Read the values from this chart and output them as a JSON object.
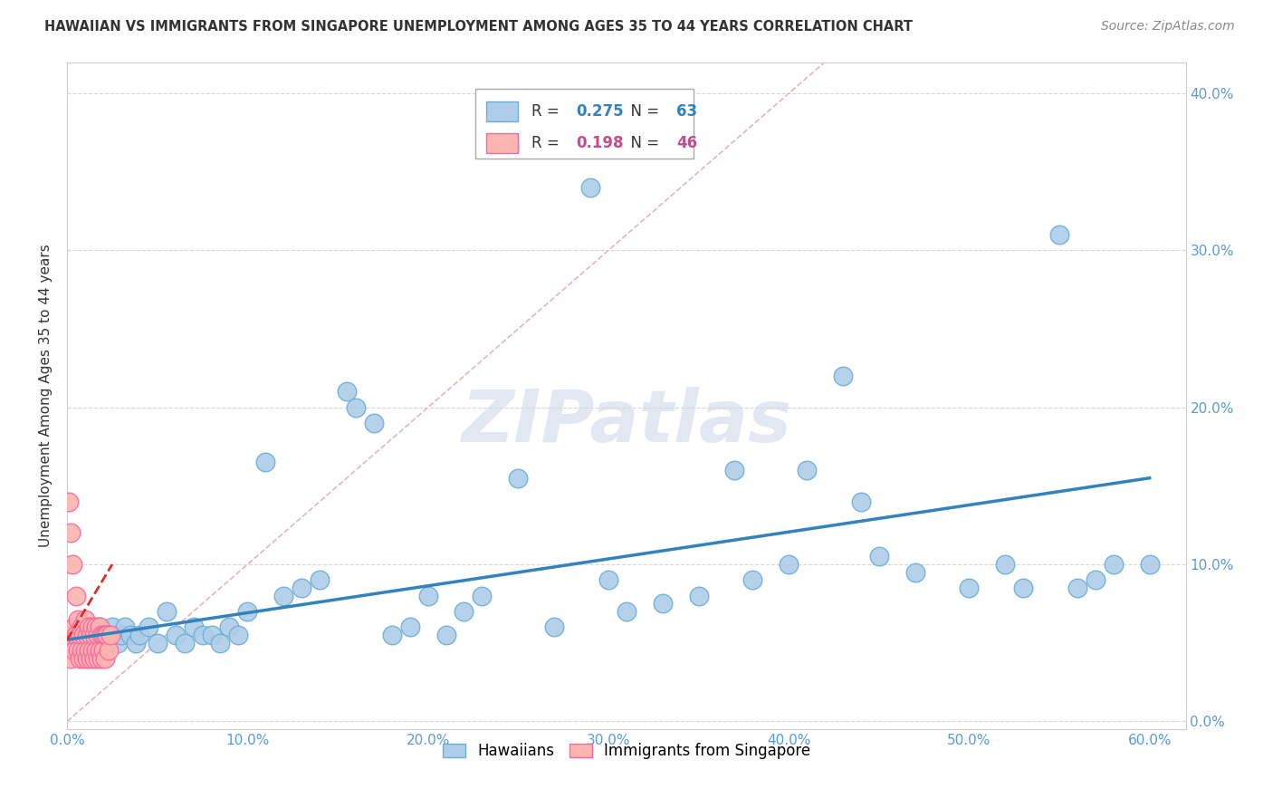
{
  "title": "HAWAIIAN VS IMMIGRANTS FROM SINGAPORE UNEMPLOYMENT AMONG AGES 35 TO 44 YEARS CORRELATION CHART",
  "source": "Source: ZipAtlas.com",
  "ylabel": "Unemployment Among Ages 35 to 44 years",
  "R_hawaiian": 0.275,
  "N_hawaiian": 63,
  "R_singapore": 0.198,
  "N_singapore": 46,
  "color_hawaiian_fill": "#aecde8",
  "color_hawaiian_edge": "#6baed6",
  "color_singapore_fill": "#fbb4ae",
  "color_singapore_edge": "#f768a1",
  "color_trend_hawaiian": "#3182bd",
  "color_trend_singapore": "#de2d26",
  "color_diagonal": "#cccccc",
  "color_tick": "#5b9bd5",
  "background_color": "#ffffff",
  "grid_color": "#cccccc",
  "xlim": [
    0.0,
    0.62
  ],
  "ylim": [
    -0.005,
    0.42
  ],
  "hawaiian_x": [
    0.005,
    0.008,
    0.01,
    0.012,
    0.015,
    0.018,
    0.02,
    0.022,
    0.025,
    0.028,
    0.03,
    0.032,
    0.035,
    0.038,
    0.04,
    0.045,
    0.05,
    0.055,
    0.06,
    0.065,
    0.07,
    0.075,
    0.08,
    0.085,
    0.09,
    0.095,
    0.1,
    0.11,
    0.12,
    0.13,
    0.14,
    0.155,
    0.16,
    0.17,
    0.18,
    0.19,
    0.2,
    0.21,
    0.22,
    0.23,
    0.25,
    0.27,
    0.29,
    0.3,
    0.31,
    0.33,
    0.35,
    0.37,
    0.38,
    0.4,
    0.41,
    0.43,
    0.44,
    0.45,
    0.47,
    0.5,
    0.52,
    0.53,
    0.55,
    0.56,
    0.57,
    0.58,
    0.6
  ],
  "hawaiian_y": [
    0.055,
    0.06,
    0.05,
    0.055,
    0.045,
    0.06,
    0.055,
    0.05,
    0.06,
    0.05,
    0.055,
    0.06,
    0.055,
    0.05,
    0.055,
    0.06,
    0.05,
    0.07,
    0.055,
    0.05,
    0.06,
    0.055,
    0.055,
    0.05,
    0.06,
    0.055,
    0.07,
    0.165,
    0.08,
    0.085,
    0.09,
    0.21,
    0.2,
    0.19,
    0.055,
    0.06,
    0.08,
    0.055,
    0.07,
    0.08,
    0.155,
    0.06,
    0.34,
    0.09,
    0.07,
    0.075,
    0.08,
    0.16,
    0.09,
    0.1,
    0.16,
    0.22,
    0.14,
    0.105,
    0.095,
    0.085,
    0.1,
    0.085,
    0.31,
    0.085,
    0.09,
    0.1,
    0.1
  ],
  "singapore_x": [
    0.0,
    0.001,
    0.001,
    0.002,
    0.002,
    0.003,
    0.003,
    0.004,
    0.004,
    0.005,
    0.005,
    0.006,
    0.006,
    0.007,
    0.007,
    0.008,
    0.008,
    0.009,
    0.009,
    0.01,
    0.01,
    0.011,
    0.011,
    0.012,
    0.012,
    0.013,
    0.013,
    0.014,
    0.014,
    0.015,
    0.015,
    0.016,
    0.016,
    0.017,
    0.017,
    0.018,
    0.018,
    0.019,
    0.019,
    0.02,
    0.02,
    0.021,
    0.021,
    0.022,
    0.023,
    0.024
  ],
  "singapore_y": [
    0.055,
    0.14,
    0.05,
    0.12,
    0.04,
    0.1,
    0.055,
    0.06,
    0.045,
    0.08,
    0.055,
    0.065,
    0.045,
    0.055,
    0.04,
    0.06,
    0.045,
    0.055,
    0.04,
    0.065,
    0.045,
    0.055,
    0.04,
    0.06,
    0.045,
    0.055,
    0.04,
    0.06,
    0.045,
    0.055,
    0.04,
    0.06,
    0.045,
    0.055,
    0.04,
    0.06,
    0.045,
    0.055,
    0.04,
    0.055,
    0.045,
    0.055,
    0.04,
    0.055,
    0.045,
    0.055
  ],
  "trend_h_x0": 0.0,
  "trend_h_y0": 0.052,
  "trend_h_x1": 0.6,
  "trend_h_y1": 0.155,
  "trend_s_x0": 0.0,
  "trend_s_y0": 0.055,
  "trend_s_x1": 0.05,
  "trend_s_y1": 0.095
}
